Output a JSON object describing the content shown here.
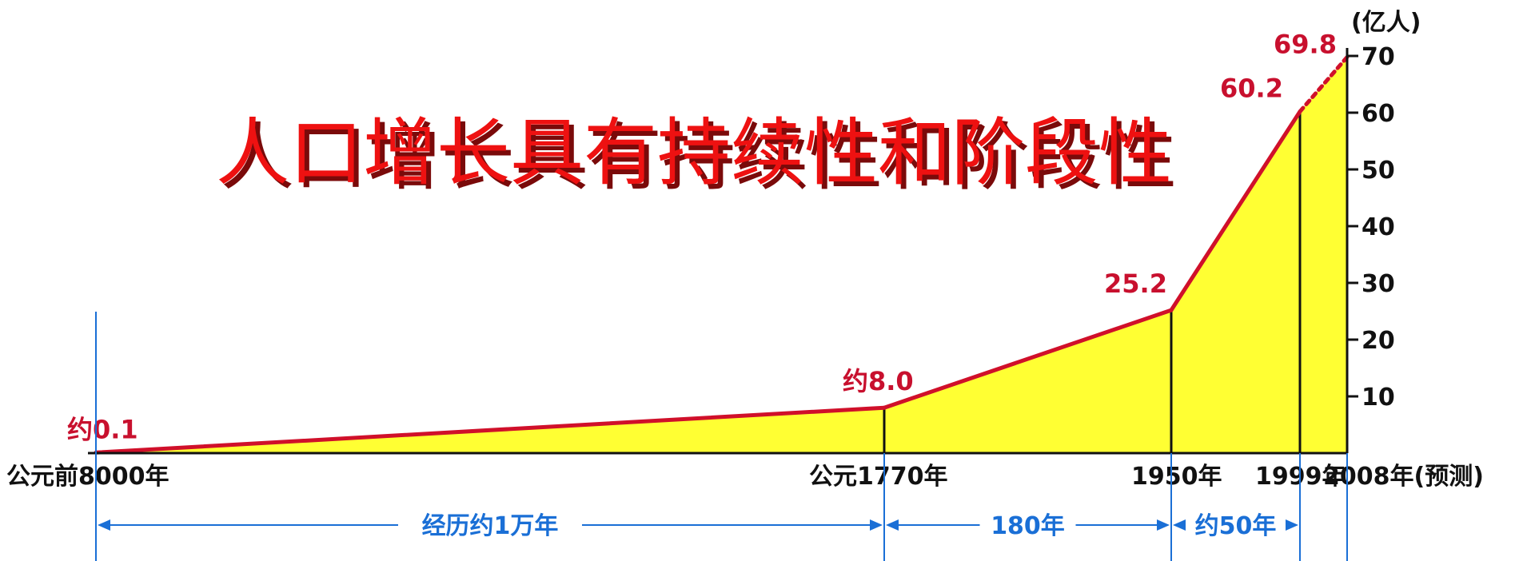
{
  "title": "人口增长具有持续性和阶段性",
  "chart_data": {
    "type": "area",
    "y_unit": "(亿人)",
    "ylim": [
      0,
      70
    ],
    "yticks": [
      10,
      20,
      30,
      40,
      50,
      60,
      70
    ],
    "points": [
      {
        "year": "公元前8000年",
        "value": 0.1,
        "label": "约0.1"
      },
      {
        "year": "公元1770年",
        "value": 8.0,
        "label": "约8.0"
      },
      {
        "year": "1950年",
        "value": 25.2,
        "label": "25.2"
      },
      {
        "year": "1999年",
        "value": 60.2,
        "label": "60.2"
      },
      {
        "year": "2008年(预测)",
        "value": 69.8,
        "label": "69.8"
      }
    ],
    "spans": [
      {
        "label": "经历约1万年"
      },
      {
        "label": "180年"
      },
      {
        "label": "约50年"
      }
    ],
    "colors": {
      "fill": "#ffff33",
      "line": "#d0102a",
      "span": "#1a6fd6"
    }
  }
}
